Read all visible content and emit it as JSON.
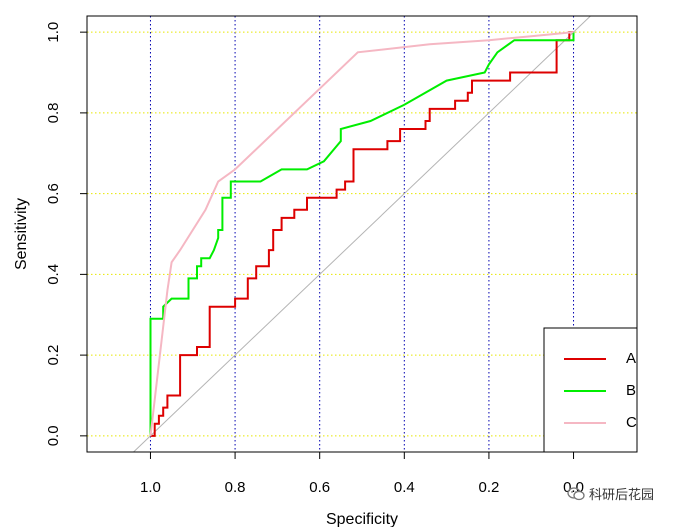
{
  "chart_data": {
    "type": "line",
    "title": "",
    "xlabel": "Specificity",
    "ylabel": "Sensitivity",
    "x_reversed": true,
    "xlim": [
      1.15,
      -0.15
    ],
    "ylim": [
      -0.04,
      1.04
    ],
    "xticks": [
      1.0,
      0.8,
      0.6,
      0.4,
      0.2,
      0.0
    ],
    "xtick_labels": [
      "1.0",
      "0.8",
      "0.6",
      "0.4",
      "0.2",
      "0.0"
    ],
    "yticks": [
      0.0,
      0.2,
      0.4,
      0.6,
      0.8,
      1.0
    ],
    "ytick_labels": [
      "0.0",
      "0.2",
      "0.4",
      "0.6",
      "0.8",
      "1.0"
    ],
    "grid": {
      "vertical": {
        "at": [
          1.0,
          0.8,
          0.6,
          0.4,
          0.2,
          0.0
        ],
        "color": "#0000b0",
        "style": "dotted"
      },
      "horizontal": {
        "at": [
          0.0,
          0.2,
          0.4,
          0.6,
          0.8,
          1.0
        ],
        "color": "#e8e800",
        "style": "dotted"
      }
    },
    "reference_line": {
      "from": [
        1.04,
        -0.04
      ],
      "to": [
        -0.04,
        1.04
      ],
      "color": "#b4b4b4"
    },
    "legend_position": "bottom-right",
    "series": [
      {
        "name": "A",
        "color": "#dd0000",
        "points": [
          [
            1.0,
            0.0
          ],
          [
            0.99,
            0.0
          ],
          [
            0.99,
            0.03
          ],
          [
            0.98,
            0.03
          ],
          [
            0.98,
            0.05
          ],
          [
            0.97,
            0.05
          ],
          [
            0.97,
            0.07
          ],
          [
            0.96,
            0.07
          ],
          [
            0.96,
            0.1
          ],
          [
            0.93,
            0.1
          ],
          [
            0.93,
            0.2
          ],
          [
            0.89,
            0.2
          ],
          [
            0.89,
            0.22
          ],
          [
            0.86,
            0.22
          ],
          [
            0.86,
            0.32
          ],
          [
            0.8,
            0.32
          ],
          [
            0.8,
            0.34
          ],
          [
            0.77,
            0.34
          ],
          [
            0.77,
            0.39
          ],
          [
            0.75,
            0.39
          ],
          [
            0.75,
            0.42
          ],
          [
            0.72,
            0.42
          ],
          [
            0.72,
            0.46
          ],
          [
            0.71,
            0.46
          ],
          [
            0.71,
            0.51
          ],
          [
            0.69,
            0.51
          ],
          [
            0.69,
            0.54
          ],
          [
            0.66,
            0.54
          ],
          [
            0.66,
            0.56
          ],
          [
            0.63,
            0.56
          ],
          [
            0.63,
            0.59
          ],
          [
            0.56,
            0.59
          ],
          [
            0.56,
            0.61
          ],
          [
            0.54,
            0.61
          ],
          [
            0.54,
            0.63
          ],
          [
            0.52,
            0.63
          ],
          [
            0.52,
            0.71
          ],
          [
            0.44,
            0.71
          ],
          [
            0.44,
            0.73
          ],
          [
            0.41,
            0.73
          ],
          [
            0.41,
            0.76
          ],
          [
            0.35,
            0.76
          ],
          [
            0.35,
            0.78
          ],
          [
            0.34,
            0.78
          ],
          [
            0.34,
            0.81
          ],
          [
            0.28,
            0.81
          ],
          [
            0.28,
            0.83
          ],
          [
            0.25,
            0.83
          ],
          [
            0.25,
            0.85
          ],
          [
            0.24,
            0.85
          ],
          [
            0.24,
            0.88
          ],
          [
            0.2,
            0.88
          ],
          [
            0.2,
            0.88
          ],
          [
            0.15,
            0.88
          ],
          [
            0.15,
            0.9
          ],
          [
            0.04,
            0.9
          ],
          [
            0.04,
            0.98
          ],
          [
            0.01,
            0.98
          ],
          [
            0.01,
            1.0
          ],
          [
            0.0,
            1.0
          ]
        ]
      },
      {
        "name": "B",
        "color": "#00ee00",
        "points": [
          [
            1.0,
            0.0
          ],
          [
            1.0,
            0.29
          ],
          [
            0.97,
            0.29
          ],
          [
            0.97,
            0.32
          ],
          [
            0.96,
            0.33
          ],
          [
            0.95,
            0.34
          ],
          [
            0.91,
            0.34
          ],
          [
            0.91,
            0.39
          ],
          [
            0.89,
            0.39
          ],
          [
            0.89,
            0.42
          ],
          [
            0.88,
            0.42
          ],
          [
            0.88,
            0.44
          ],
          [
            0.86,
            0.44
          ],
          [
            0.85,
            0.46
          ],
          [
            0.84,
            0.49
          ],
          [
            0.84,
            0.51
          ],
          [
            0.83,
            0.51
          ],
          [
            0.83,
            0.59
          ],
          [
            0.81,
            0.59
          ],
          [
            0.81,
            0.63
          ],
          [
            0.74,
            0.63
          ],
          [
            0.69,
            0.66
          ],
          [
            0.63,
            0.66
          ],
          [
            0.59,
            0.68
          ],
          [
            0.55,
            0.73
          ],
          [
            0.55,
            0.76
          ],
          [
            0.48,
            0.78
          ],
          [
            0.4,
            0.82
          ],
          [
            0.3,
            0.88
          ],
          [
            0.21,
            0.9
          ],
          [
            0.2,
            0.92
          ],
          [
            0.18,
            0.95
          ],
          [
            0.14,
            0.98
          ],
          [
            0.0,
            0.98
          ],
          [
            0.0,
            1.0
          ]
        ]
      },
      {
        "name": "C",
        "color": "#f5b7c3",
        "points": [
          [
            1.0,
            0.0
          ],
          [
            0.96,
            0.36
          ],
          [
            0.95,
            0.43
          ],
          [
            0.93,
            0.46
          ],
          [
            0.87,
            0.56
          ],
          [
            0.84,
            0.63
          ],
          [
            0.8,
            0.66
          ],
          [
            0.6,
            0.86
          ],
          [
            0.51,
            0.95
          ],
          [
            0.34,
            0.97
          ],
          [
            0.2,
            0.98
          ],
          [
            0.1,
            0.99
          ],
          [
            0.0,
            1.0
          ]
        ]
      }
    ]
  },
  "watermark": {
    "icon": "wechat-icon",
    "text": "科研后花园"
  }
}
